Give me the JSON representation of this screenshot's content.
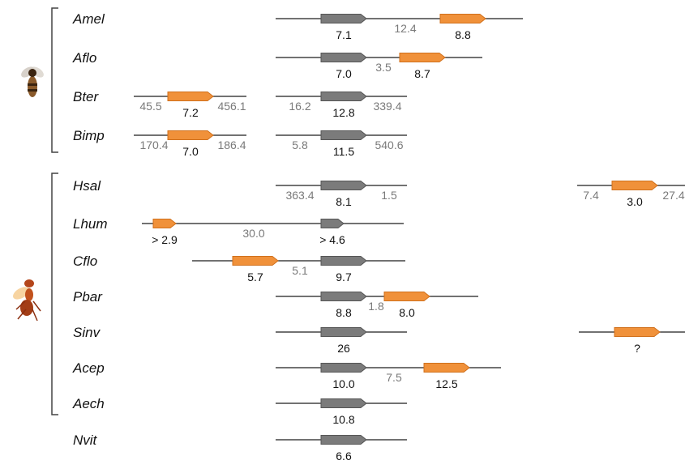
{
  "groups": [
    {
      "name": "bees-and-wasps",
      "icon": "bee-icon",
      "start": 0,
      "end": 3
    },
    {
      "name": "ants",
      "icon": "ant-icon",
      "start": 4,
      "end": 10
    }
  ],
  "colors": {
    "gray_gene": "#7b7b7b",
    "orange_gene": "#f0913a",
    "line": "#444444"
  },
  "rows": [
    {
      "species": "Amel",
      "segments": [
        {
          "line": [
            340,
            645
          ],
          "genes": [
            {
              "x": 396,
              "w": 56,
              "color": "gray",
              "label": "7.1"
            },
            {
              "x": 543,
              "w": 56,
              "color": "orange",
              "label": "8.8"
            }
          ],
          "gaps": [
            {
              "x": 500,
              "label": "12.4"
            }
          ]
        }
      ]
    },
    {
      "species": "Aflo",
      "segments": [
        {
          "line": [
            340,
            595
          ],
          "genes": [
            {
              "x": 396,
              "w": 56,
              "color": "gray",
              "label": "7.0"
            },
            {
              "x": 493,
              "w": 56,
              "color": "orange",
              "label": "8.7"
            }
          ],
          "gaps": [
            {
              "x": 473,
              "label": "3.5"
            }
          ]
        }
      ]
    },
    {
      "species": "Bter",
      "segments": [
        {
          "line": [
            165,
            304
          ],
          "genes": [
            {
              "x": 207,
              "w": 56,
              "color": "orange",
              "label": "7.2"
            }
          ],
          "gaps": [
            {
              "x": 186,
              "label": "45.5"
            },
            {
              "x": 286,
              "label": "456.1"
            }
          ]
        },
        {
          "line": [
            340,
            502
          ],
          "genes": [
            {
              "x": 396,
              "w": 56,
              "color": "gray",
              "label": "12.8"
            }
          ],
          "gaps": [
            {
              "x": 370,
              "label": "16.2"
            },
            {
              "x": 478,
              "label": "339.4"
            }
          ]
        }
      ]
    },
    {
      "species": "Bimp",
      "segments": [
        {
          "line": [
            165,
            304
          ],
          "genes": [
            {
              "x": 207,
              "w": 56,
              "color": "orange",
              "label": "7.0"
            }
          ],
          "gaps": [
            {
              "x": 190,
              "label": "170.4"
            },
            {
              "x": 286,
              "label": "186.4"
            }
          ]
        },
        {
          "line": [
            340,
            502
          ],
          "genes": [
            {
              "x": 396,
              "w": 56,
              "color": "gray",
              "label": "11.5"
            }
          ],
          "gaps": [
            {
              "x": 370,
              "label": "5.8"
            },
            {
              "x": 480,
              "label": "540.6"
            }
          ]
        }
      ]
    },
    {
      "species": "Hsal",
      "segments": [
        {
          "line": [
            340,
            502
          ],
          "genes": [
            {
              "x": 396,
              "w": 56,
              "color": "gray",
              "label": "8.1"
            }
          ],
          "gaps": [
            {
              "x": 370,
              "label": "363.4"
            },
            {
              "x": 480,
              "label": "1.5"
            }
          ]
        },
        {
          "line": [
            712,
            845
          ],
          "genes": [
            {
              "x": 755,
              "w": 56,
              "color": "orange",
              "label": "3.0"
            }
          ],
          "gaps": [
            {
              "x": 729,
              "label": "7.4"
            },
            {
              "x": 831,
              "label": "27.4"
            }
          ]
        }
      ]
    },
    {
      "species": "Lhum",
      "segments": [
        {
          "line": [
            175,
            498
          ],
          "genes": [
            {
              "x": 189,
              "w": 28,
              "color": "orange",
              "label": "> 2.9"
            },
            {
              "x": 396,
              "w": 28,
              "color": "gray",
              "label": "> 4.6"
            }
          ],
          "gaps": [
            {
              "x": 313,
              "label": "30.0"
            }
          ]
        }
      ]
    },
    {
      "species": "Cflo",
      "segments": [
        {
          "line": [
            237,
            500
          ],
          "genes": [
            {
              "x": 287,
              "w": 56,
              "color": "orange",
              "label": "5.7"
            },
            {
              "x": 396,
              "w": 56,
              "color": "gray",
              "label": "9.7"
            }
          ],
          "gaps": [
            {
              "x": 370,
              "label": "5.1"
            }
          ]
        }
      ]
    },
    {
      "species": "Pbar",
      "segments": [
        {
          "line": [
            340,
            590
          ],
          "genes": [
            {
              "x": 396,
              "w": 56,
              "color": "gray",
              "label": "8.8"
            },
            {
              "x": 474,
              "w": 56,
              "color": "orange",
              "label": "8.0"
            }
          ],
          "gaps": [
            {
              "x": 464,
              "label": "1.8"
            }
          ]
        }
      ]
    },
    {
      "species": "Sinv",
      "segments": [
        {
          "line": [
            340,
            502
          ],
          "genes": [
            {
              "x": 396,
              "w": 56,
              "color": "gray",
              "label": "26"
            }
          ],
          "gaps": []
        },
        {
          "line": [
            714,
            845
          ],
          "genes": [
            {
              "x": 758,
              "w": 56,
              "color": "orange",
              "label": "?"
            }
          ],
          "gaps": []
        }
      ]
    },
    {
      "species": "Acep",
      "segments": [
        {
          "line": [
            340,
            618
          ],
          "genes": [
            {
              "x": 396,
              "w": 56,
              "color": "gray",
              "label": "10.0"
            },
            {
              "x": 523,
              "w": 56,
              "color": "orange",
              "label": "12.5"
            }
          ],
          "gaps": [
            {
              "x": 486,
              "label": "7.5"
            }
          ]
        }
      ]
    },
    {
      "species": "Aech",
      "segments": [
        {
          "line": [
            340,
            502
          ],
          "genes": [
            {
              "x": 396,
              "w": 56,
              "color": "gray",
              "label": "10.8"
            }
          ],
          "gaps": []
        }
      ]
    },
    {
      "species": "Nvit",
      "segments": [
        {
          "line": [
            340,
            502
          ],
          "genes": [
            {
              "x": 396,
              "w": 56,
              "color": "gray",
              "label": "6.6"
            }
          ],
          "gaps": []
        }
      ]
    }
  ]
}
